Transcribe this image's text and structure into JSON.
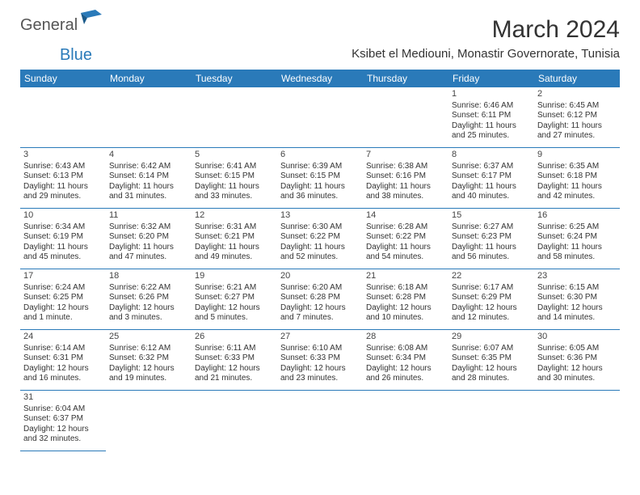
{
  "logo_general": "General",
  "logo_blue": "Blue",
  "month_title": "March 2024",
  "location": "Ksibet el Mediouni, Monastir Governorate, Tunisia",
  "colors": {
    "header_bg": "#2a7ab9",
    "header_text": "#ffffff",
    "border": "#2a7ab9",
    "text": "#333333",
    "logo_gray": "#555555",
    "logo_blue": "#2a7ab9",
    "background": "#ffffff"
  },
  "day_headers": [
    "Sunday",
    "Monday",
    "Tuesday",
    "Wednesday",
    "Thursday",
    "Friday",
    "Saturday"
  ],
  "leading_blanks": 5,
  "days": [
    {
      "n": "1",
      "sr": "Sunrise: 6:46 AM",
      "ss": "Sunset: 6:11 PM",
      "d1": "Daylight: 11 hours",
      "d2": "and 25 minutes."
    },
    {
      "n": "2",
      "sr": "Sunrise: 6:45 AM",
      "ss": "Sunset: 6:12 PM",
      "d1": "Daylight: 11 hours",
      "d2": "and 27 minutes."
    },
    {
      "n": "3",
      "sr": "Sunrise: 6:43 AM",
      "ss": "Sunset: 6:13 PM",
      "d1": "Daylight: 11 hours",
      "d2": "and 29 minutes."
    },
    {
      "n": "4",
      "sr": "Sunrise: 6:42 AM",
      "ss": "Sunset: 6:14 PM",
      "d1": "Daylight: 11 hours",
      "d2": "and 31 minutes."
    },
    {
      "n": "5",
      "sr": "Sunrise: 6:41 AM",
      "ss": "Sunset: 6:15 PM",
      "d1": "Daylight: 11 hours",
      "d2": "and 33 minutes."
    },
    {
      "n": "6",
      "sr": "Sunrise: 6:39 AM",
      "ss": "Sunset: 6:15 PM",
      "d1": "Daylight: 11 hours",
      "d2": "and 36 minutes."
    },
    {
      "n": "7",
      "sr": "Sunrise: 6:38 AM",
      "ss": "Sunset: 6:16 PM",
      "d1": "Daylight: 11 hours",
      "d2": "and 38 minutes."
    },
    {
      "n": "8",
      "sr": "Sunrise: 6:37 AM",
      "ss": "Sunset: 6:17 PM",
      "d1": "Daylight: 11 hours",
      "d2": "and 40 minutes."
    },
    {
      "n": "9",
      "sr": "Sunrise: 6:35 AM",
      "ss": "Sunset: 6:18 PM",
      "d1": "Daylight: 11 hours",
      "d2": "and 42 minutes."
    },
    {
      "n": "10",
      "sr": "Sunrise: 6:34 AM",
      "ss": "Sunset: 6:19 PM",
      "d1": "Daylight: 11 hours",
      "d2": "and 45 minutes."
    },
    {
      "n": "11",
      "sr": "Sunrise: 6:32 AM",
      "ss": "Sunset: 6:20 PM",
      "d1": "Daylight: 11 hours",
      "d2": "and 47 minutes."
    },
    {
      "n": "12",
      "sr": "Sunrise: 6:31 AM",
      "ss": "Sunset: 6:21 PM",
      "d1": "Daylight: 11 hours",
      "d2": "and 49 minutes."
    },
    {
      "n": "13",
      "sr": "Sunrise: 6:30 AM",
      "ss": "Sunset: 6:22 PM",
      "d1": "Daylight: 11 hours",
      "d2": "and 52 minutes."
    },
    {
      "n": "14",
      "sr": "Sunrise: 6:28 AM",
      "ss": "Sunset: 6:22 PM",
      "d1": "Daylight: 11 hours",
      "d2": "and 54 minutes."
    },
    {
      "n": "15",
      "sr": "Sunrise: 6:27 AM",
      "ss": "Sunset: 6:23 PM",
      "d1": "Daylight: 11 hours",
      "d2": "and 56 minutes."
    },
    {
      "n": "16",
      "sr": "Sunrise: 6:25 AM",
      "ss": "Sunset: 6:24 PM",
      "d1": "Daylight: 11 hours",
      "d2": "and 58 minutes."
    },
    {
      "n": "17",
      "sr": "Sunrise: 6:24 AM",
      "ss": "Sunset: 6:25 PM",
      "d1": "Daylight: 12 hours",
      "d2": "and 1 minute."
    },
    {
      "n": "18",
      "sr": "Sunrise: 6:22 AM",
      "ss": "Sunset: 6:26 PM",
      "d1": "Daylight: 12 hours",
      "d2": "and 3 minutes."
    },
    {
      "n": "19",
      "sr": "Sunrise: 6:21 AM",
      "ss": "Sunset: 6:27 PM",
      "d1": "Daylight: 12 hours",
      "d2": "and 5 minutes."
    },
    {
      "n": "20",
      "sr": "Sunrise: 6:20 AM",
      "ss": "Sunset: 6:28 PM",
      "d1": "Daylight: 12 hours",
      "d2": "and 7 minutes."
    },
    {
      "n": "21",
      "sr": "Sunrise: 6:18 AM",
      "ss": "Sunset: 6:28 PM",
      "d1": "Daylight: 12 hours",
      "d2": "and 10 minutes."
    },
    {
      "n": "22",
      "sr": "Sunrise: 6:17 AM",
      "ss": "Sunset: 6:29 PM",
      "d1": "Daylight: 12 hours",
      "d2": "and 12 minutes."
    },
    {
      "n": "23",
      "sr": "Sunrise: 6:15 AM",
      "ss": "Sunset: 6:30 PM",
      "d1": "Daylight: 12 hours",
      "d2": "and 14 minutes."
    },
    {
      "n": "24",
      "sr": "Sunrise: 6:14 AM",
      "ss": "Sunset: 6:31 PM",
      "d1": "Daylight: 12 hours",
      "d2": "and 16 minutes."
    },
    {
      "n": "25",
      "sr": "Sunrise: 6:12 AM",
      "ss": "Sunset: 6:32 PM",
      "d1": "Daylight: 12 hours",
      "d2": "and 19 minutes."
    },
    {
      "n": "26",
      "sr": "Sunrise: 6:11 AM",
      "ss": "Sunset: 6:33 PM",
      "d1": "Daylight: 12 hours",
      "d2": "and 21 minutes."
    },
    {
      "n": "27",
      "sr": "Sunrise: 6:10 AM",
      "ss": "Sunset: 6:33 PM",
      "d1": "Daylight: 12 hours",
      "d2": "and 23 minutes."
    },
    {
      "n": "28",
      "sr": "Sunrise: 6:08 AM",
      "ss": "Sunset: 6:34 PM",
      "d1": "Daylight: 12 hours",
      "d2": "and 26 minutes."
    },
    {
      "n": "29",
      "sr": "Sunrise: 6:07 AM",
      "ss": "Sunset: 6:35 PM",
      "d1": "Daylight: 12 hours",
      "d2": "and 28 minutes."
    },
    {
      "n": "30",
      "sr": "Sunrise: 6:05 AM",
      "ss": "Sunset: 6:36 PM",
      "d1": "Daylight: 12 hours",
      "d2": "and 30 minutes."
    },
    {
      "n": "31",
      "sr": "Sunrise: 6:04 AM",
      "ss": "Sunset: 6:37 PM",
      "d1": "Daylight: 12 hours",
      "d2": "and 32 minutes."
    }
  ]
}
